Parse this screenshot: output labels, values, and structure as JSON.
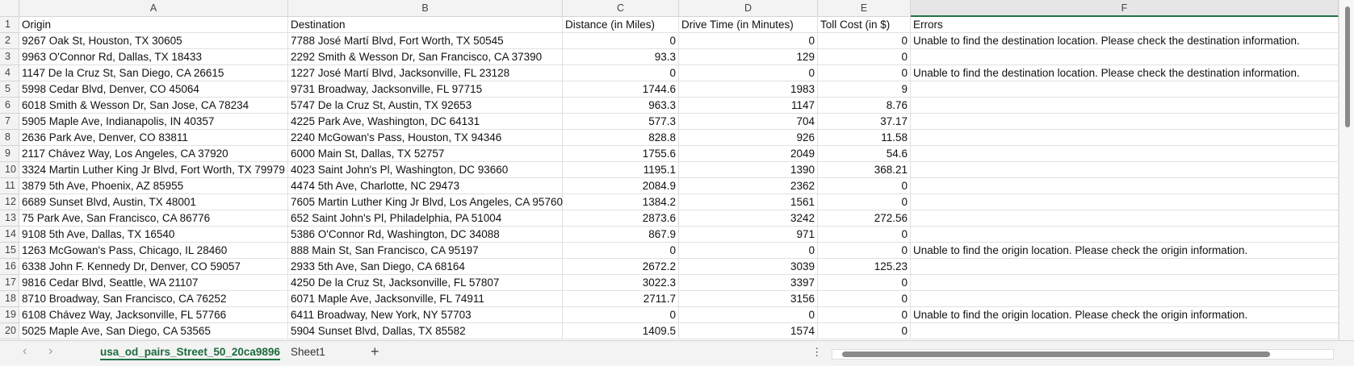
{
  "column_letters": [
    "A",
    "B",
    "C",
    "D",
    "E",
    "F"
  ],
  "row_numbers": [
    1,
    2,
    3,
    4,
    5,
    6,
    7,
    8,
    9,
    10,
    11,
    12,
    13,
    14,
    15,
    16,
    17,
    18,
    19,
    20
  ],
  "header_row": [
    "Origin",
    "Destination",
    "Distance (in Miles)",
    "Drive Time (in Minutes)",
    "Toll Cost (in $)",
    "Errors"
  ],
  "rows": [
    [
      "9267 Oak St, Houston, TX 30605",
      "7788 José Martí Blvd, Fort Worth, TX 50545",
      0,
      0,
      0,
      "Unable to find the destination location. Please check the destination information."
    ],
    [
      "9963 O'Connor Rd, Dallas, TX 18433",
      "2292 Smith & Wesson Dr, San Francisco, CA 37390",
      93.3,
      129,
      0,
      null
    ],
    [
      "1147 De la Cruz St, San Diego, CA 26615",
      "1227 José Martí Blvd, Jacksonville, FL 23128",
      0,
      0,
      0,
      "Unable to find the destination location. Please check the destination information."
    ],
    [
      "5998 Cedar Blvd, Denver, CO 45064",
      "9731 Broadway, Jacksonville, FL 97715",
      1744.6,
      1983,
      9,
      null
    ],
    [
      "6018 Smith & Wesson Dr, San Jose, CA 78234",
      "5747 De la Cruz St, Austin, TX 92653",
      963.3,
      1147,
      8.76,
      null
    ],
    [
      "5905 Maple Ave, Indianapolis, IN 40357",
      "4225 Park Ave, Washington, DC 64131",
      577.3,
      704,
      37.17,
      null
    ],
    [
      "2636 Park Ave, Denver, CO 83811",
      "2240 McGowan's Pass, Houston, TX 94346",
      828.8,
      926,
      11.58,
      null
    ],
    [
      "2117 Chávez Way, Los Angeles, CA 37920",
      "6000 Main St, Dallas, TX 52757",
      1755.6,
      2049,
      54.6,
      null
    ],
    [
      "3324 Martin Luther King Jr Blvd, Fort Worth, TX 79979",
      "4023 Saint John's Pl, Washington, DC 93660",
      1195.1,
      1390,
      368.21,
      null
    ],
    [
      "3879 5th Ave, Phoenix, AZ 85955",
      "4474 5th Ave, Charlotte, NC 29473",
      2084.9,
      2362,
      0,
      null
    ],
    [
      "6689 Sunset Blvd, Austin, TX 48001",
      "7605 Martin Luther King Jr Blvd, Los Angeles, CA 95760",
      1384.2,
      1561,
      0,
      null
    ],
    [
      "75 Park Ave, San Francisco, CA 86776",
      "652 Saint John's Pl, Philadelphia, PA 51004",
      2873.6,
      3242,
      272.56,
      null
    ],
    [
      "9108 5th Ave, Dallas, TX 16540",
      "5386 O'Connor Rd, Washington, DC 34088",
      867.9,
      971,
      0,
      null
    ],
    [
      "1263 McGowan's Pass, Chicago, IL 28460",
      "888 Main St, San Francisco, CA 95197",
      0,
      0,
      0,
      "Unable to find the origin location. Please check the origin information."
    ],
    [
      "6338 John F. Kennedy Dr, Denver, CO 59057",
      "2933 5th Ave, San Diego, CA 68164",
      2672.2,
      3039,
      125.23,
      null
    ],
    [
      "9816 Cedar Blvd, Seattle, WA 21107",
      "4250 De la Cruz St, Jacksonville, FL 57807",
      3022.3,
      3397,
      0,
      null
    ],
    [
      "8710 Broadway, San Francisco, CA 76252",
      "6071 Maple Ave, Jacksonville, FL 74911",
      2711.7,
      3156,
      0,
      null
    ],
    [
      "6108 Chávez Way, Jacksonville, FL 57766",
      "6411 Broadway, New York, NY 57703",
      0,
      0,
      0,
      "Unable to find the origin location. Please check the origin information."
    ],
    [
      "5025 Maple Ave, San Diego, CA 53565",
      "5904 Sunset Blvd, Dallas, TX 85582",
      1409.5,
      1574,
      0,
      null
    ]
  ],
  "sheet_tabs": [
    "usa_od_pairs_Street_50_20ca9896",
    "Sheet1"
  ]
}
